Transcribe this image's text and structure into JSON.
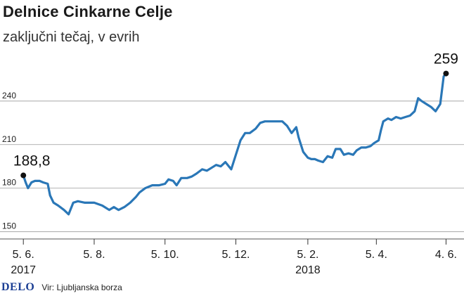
{
  "chart_data": {
    "type": "line",
    "title": "Delnice Cinkarne Celje",
    "subtitle": "zaključni tečaj, v evrih",
    "y_ticks": [
      150,
      180,
      210,
      240
    ],
    "ylim": [
      145,
      268
    ],
    "x_ticks": [
      {
        "date": "2017-06-05",
        "label": "5. 6.",
        "year": "2017"
      },
      {
        "date": "2017-08-05",
        "label": "5. 8.",
        "year": ""
      },
      {
        "date": "2017-10-05",
        "label": "5. 10.",
        "year": ""
      },
      {
        "date": "2017-12-05",
        "label": "5. 12.",
        "year": ""
      },
      {
        "date": "2018-02-05",
        "label": "5. 2.",
        "year": "2018"
      },
      {
        "date": "2018-04-05",
        "label": "5. 4.",
        "year": ""
      },
      {
        "date": "2018-06-04",
        "label": "4. 6.",
        "year": ""
      }
    ],
    "xlim": [
      "2017-05-28",
      "2018-06-11"
    ],
    "series": [
      {
        "color": "#2a77b7",
        "points": [
          [
            "2017-06-05",
            188.8
          ],
          [
            "2017-06-07",
            184
          ],
          [
            "2017-06-09",
            180
          ],
          [
            "2017-06-12",
            184
          ],
          [
            "2017-06-15",
            185
          ],
          [
            "2017-06-19",
            185
          ],
          [
            "2017-06-22",
            184
          ],
          [
            "2017-06-26",
            183
          ],
          [
            "2017-06-28",
            175
          ],
          [
            "2017-07-01",
            170
          ],
          [
            "2017-07-05",
            168
          ],
          [
            "2017-07-10",
            165
          ],
          [
            "2017-07-14",
            162
          ],
          [
            "2017-07-18",
            170
          ],
          [
            "2017-07-22",
            171
          ],
          [
            "2017-07-28",
            170
          ],
          [
            "2017-08-05",
            170
          ],
          [
            "2017-08-12",
            168
          ],
          [
            "2017-08-18",
            165
          ],
          [
            "2017-08-22",
            167
          ],
          [
            "2017-08-26",
            165
          ],
          [
            "2017-08-31",
            167
          ],
          [
            "2017-09-05",
            170
          ],
          [
            "2017-09-10",
            174
          ],
          [
            "2017-09-13",
            177
          ],
          [
            "2017-09-18",
            180
          ],
          [
            "2017-09-24",
            182
          ],
          [
            "2017-09-30",
            182
          ],
          [
            "2017-10-05",
            183
          ],
          [
            "2017-10-08",
            186
          ],
          [
            "2017-10-12",
            185
          ],
          [
            "2017-10-15",
            182
          ],
          [
            "2017-10-19",
            187
          ],
          [
            "2017-10-24",
            187
          ],
          [
            "2017-10-28",
            188
          ],
          [
            "2017-11-01",
            190
          ],
          [
            "2017-11-06",
            193
          ],
          [
            "2017-11-10",
            192
          ],
          [
            "2017-11-14",
            194
          ],
          [
            "2017-11-18",
            196
          ],
          [
            "2017-11-22",
            195
          ],
          [
            "2017-11-26",
            198
          ],
          [
            "2017-12-01",
            193
          ],
          [
            "2017-12-05",
            203
          ],
          [
            "2017-12-09",
            213
          ],
          [
            "2017-12-13",
            218
          ],
          [
            "2017-12-17",
            218
          ],
          [
            "2017-12-22",
            221
          ],
          [
            "2017-12-26",
            225
          ],
          [
            "2017-12-30",
            226
          ],
          [
            "2018-01-04",
            226
          ],
          [
            "2018-01-09",
            226
          ],
          [
            "2018-01-14",
            226
          ],
          [
            "2018-01-18",
            223
          ],
          [
            "2018-01-22",
            218
          ],
          [
            "2018-01-26",
            222
          ],
          [
            "2018-01-28",
            215
          ],
          [
            "2018-02-01",
            205
          ],
          [
            "2018-02-05",
            201
          ],
          [
            "2018-02-08",
            200
          ],
          [
            "2018-02-11",
            200
          ],
          [
            "2018-02-14",
            199
          ],
          [
            "2018-02-18",
            198
          ],
          [
            "2018-02-22",
            202
          ],
          [
            "2018-02-26",
            201
          ],
          [
            "2018-03-01",
            207
          ],
          [
            "2018-03-05",
            207
          ],
          [
            "2018-03-08",
            203
          ],
          [
            "2018-03-12",
            204
          ],
          [
            "2018-03-16",
            203
          ],
          [
            "2018-03-19",
            206
          ],
          [
            "2018-03-23",
            208
          ],
          [
            "2018-03-27",
            208
          ],
          [
            "2018-03-31",
            209
          ],
          [
            "2018-04-03",
            211
          ],
          [
            "2018-04-07",
            213
          ],
          [
            "2018-04-09",
            220
          ],
          [
            "2018-04-11",
            226
          ],
          [
            "2018-04-15",
            228
          ],
          [
            "2018-04-18",
            227
          ],
          [
            "2018-04-22",
            229
          ],
          [
            "2018-04-26",
            228
          ],
          [
            "2018-04-30",
            229
          ],
          [
            "2018-05-04",
            230
          ],
          [
            "2018-05-08",
            233
          ],
          [
            "2018-05-11",
            242
          ],
          [
            "2018-05-14",
            240
          ],
          [
            "2018-05-18",
            238
          ],
          [
            "2018-05-22",
            236
          ],
          [
            "2018-05-26",
            233
          ],
          [
            "2018-05-30",
            238
          ],
          [
            "2018-06-02",
            257
          ],
          [
            "2018-06-04",
            259
          ]
        ]
      }
    ],
    "annotations": [
      {
        "date": "2017-06-05",
        "value": 188.8,
        "label": "188,8",
        "position": "above-left"
      },
      {
        "date": "2018-06-04",
        "value": 259,
        "label": "259",
        "position": "above"
      }
    ],
    "grid": true
  },
  "footer": {
    "logo": "DELO",
    "source": "Vir: Ljubljanska borza"
  }
}
